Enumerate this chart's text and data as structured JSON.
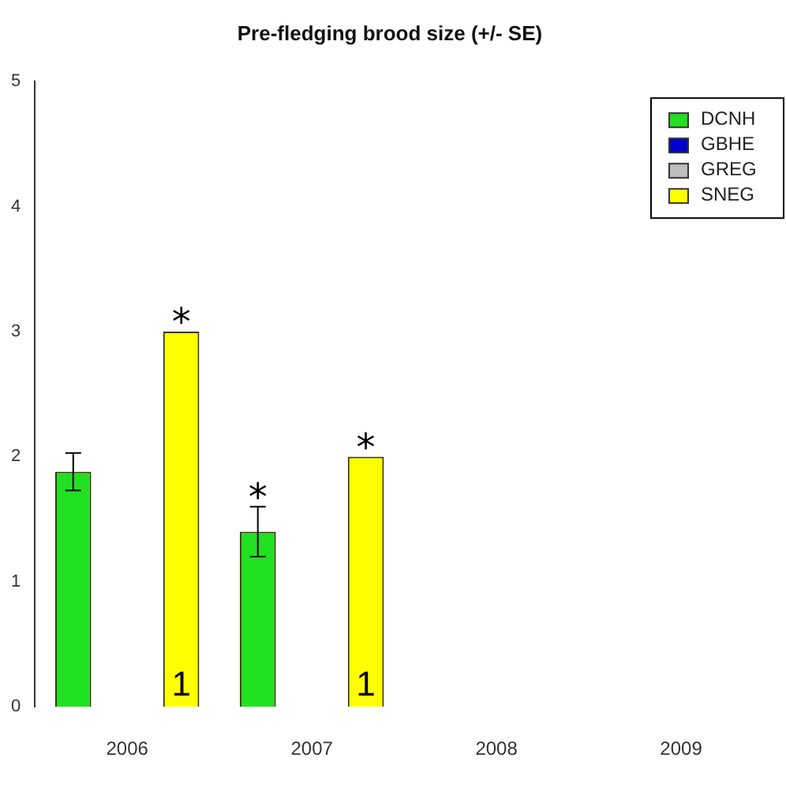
{
  "chart_data": {
    "type": "bar",
    "title": "Pre-fledging brood size (+/- SE)",
    "categories": [
      "2006",
      "2007",
      "2008",
      "2009"
    ],
    "series": [
      {
        "name": "DCNH",
        "color": "#22e022",
        "values": [
          1.88,
          1.4,
          null,
          null
        ],
        "errors": [
          0.15,
          0.2,
          null,
          null
        ],
        "value_labels": [
          null,
          "*",
          null,
          null
        ]
      },
      {
        "name": "GBHE",
        "color": "#0000cc",
        "values": [
          null,
          null,
          null,
          null
        ]
      },
      {
        "name": "GREG",
        "color": "#bebebe",
        "values": [
          null,
          null,
          null,
          null
        ]
      },
      {
        "name": "SNEG",
        "color": "#ffff00",
        "values": [
          3,
          2,
          null,
          null
        ],
        "value_labels": [
          "*",
          "*",
          null,
          null
        ]
      }
    ],
    "annotations": [
      "1",
      "1"
    ],
    "ylim": [
      0,
      5
    ],
    "yticks": [
      0,
      1,
      2,
      3,
      4,
      5
    ],
    "grid": false,
    "legend": "top right"
  }
}
